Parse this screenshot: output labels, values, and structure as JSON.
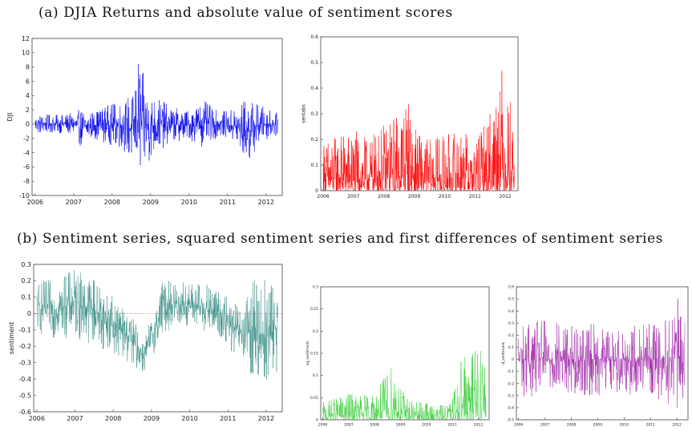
{
  "captions": {
    "a": "(a) DJIA Returns and absolute value of sentiment scores",
    "b": "(b) Sentiment series, squared sentiment series and first differences of sentiment series"
  },
  "chart_data": [
    {
      "type": "line",
      "ylabel": "DJI",
      "xlabel": "",
      "color": "#0000ee",
      "xlim": [
        2005.92,
        2012.42
      ],
      "ylim": [
        -10,
        12
      ],
      "xticks": [
        "2006",
        "2007",
        "2008",
        "2009",
        "2010",
        "2011",
        "2012"
      ],
      "yticks": [
        "-10",
        "-8",
        "-6",
        "-4",
        "-2",
        "0",
        "2",
        "4",
        "6",
        "8",
        "10",
        "12"
      ],
      "zero_line": false,
      "series": [
        {
          "x": [
            2006.0,
            2006.5,
            2007.0,
            2007.2,
            2007.5,
            2007.8,
            2008.0,
            2008.3,
            2008.55,
            2008.72,
            2008.78,
            2008.85,
            2009.0,
            2009.2,
            2009.5,
            2010.0,
            2010.35,
            2010.7,
            2011.0,
            2011.55,
            2011.65,
            2011.8,
            2012.0,
            2012.3
          ],
          "y": [
            1.5,
            1.3,
            1.6,
            2.2,
            1.8,
            2.6,
            2.9,
            3.5,
            4.5,
            10.5,
            7.5,
            6.5,
            4.5,
            3.8,
            2.5,
            2.0,
            3.5,
            2.0,
            1.8,
            4.0,
            3.2,
            2.9,
            2.3,
            1.5
          ]
        },
        {
          "x": [
            2006.0,
            2006.5,
            2007.0,
            2007.2,
            2007.5,
            2007.8,
            2008.0,
            2008.3,
            2008.55,
            2008.72,
            2008.78,
            2008.85,
            2009.0,
            2009.2,
            2009.5,
            2010.0,
            2010.35,
            2010.7,
            2011.0,
            2011.55,
            2011.65,
            2011.8,
            2012.0,
            2012.3
          ],
          "y": [
            -1.5,
            -1.2,
            -1.6,
            -3.3,
            -2.0,
            -2.6,
            -3.0,
            -3.8,
            -6.0,
            -8.2,
            -7.8,
            -7.0,
            -5.0,
            -4.0,
            -2.6,
            -2.2,
            -3.2,
            -2.0,
            -1.8,
            -5.8,
            -4.5,
            -3.0,
            -2.2,
            -1.6
          ]
        }
      ]
    },
    {
      "type": "line",
      "ylabel": "sentabs",
      "xlabel": "",
      "color": "#ff0000",
      "xlim": [
        2005.92,
        2012.42
      ],
      "ylim": [
        0,
        0.6
      ],
      "xticks": [
        "2006",
        "2007",
        "2008",
        "2009",
        "2010",
        "2011",
        "2012"
      ],
      "yticks": [
        "0",
        "0.1",
        "0.2",
        "0.3",
        "0.4",
        "0.5",
        "0.6"
      ],
      "zero_line": false,
      "series": [
        {
          "x": [
            2006.0,
            2006.5,
            2007.0,
            2007.5,
            2008.0,
            2008.4,
            2008.6,
            2008.8,
            2009.0,
            2009.3,
            2009.6,
            2010.0,
            2010.4,
            2010.8,
            2011.0,
            2011.3,
            2011.6,
            2011.85,
            2012.0,
            2012.3
          ],
          "y": [
            0.2,
            0.22,
            0.24,
            0.2,
            0.26,
            0.3,
            0.36,
            0.37,
            0.25,
            0.21,
            0.2,
            0.22,
            0.24,
            0.22,
            0.2,
            0.26,
            0.36,
            0.53,
            0.4,
            0.33
          ]
        },
        {
          "x": [
            2006.0,
            2012.3
          ],
          "y": [
            0.0,
            0.0
          ]
        }
      ]
    },
    {
      "type": "line",
      "ylabel": "sentiment",
      "xlabel": "",
      "color": "#3a8f87",
      "xlim": [
        2005.92,
        2012.42
      ],
      "ylim": [
        -0.6,
        0.3
      ],
      "xticks": [
        "2006",
        "2007",
        "2008",
        "2009",
        "2010",
        "2011",
        "2012"
      ],
      "yticks": [
        "-0.6",
        "-0.5",
        "-0.4",
        "-0.3",
        "-0.2",
        "-0.1",
        "0",
        "0.1",
        "0.2",
        "0.3"
      ],
      "zero_line": true,
      "series": [
        {
          "x": [
            2006.0,
            2006.5,
            2007.0,
            2007.5,
            2008.0,
            2008.4,
            2008.8,
            2009.0,
            2009.3,
            2009.6,
            2010.0,
            2010.4,
            2010.8,
            2011.0,
            2011.4,
            2011.7,
            2011.9,
            2012.0,
            2012.3
          ],
          "y": [
            0.2,
            0.21,
            0.28,
            0.24,
            0.1,
            0.02,
            -0.15,
            -0.02,
            0.2,
            0.21,
            0.2,
            0.18,
            0.15,
            0.1,
            0.03,
            0.25,
            0.27,
            0.2,
            0.25
          ]
        },
        {
          "x": [
            2006.0,
            2006.5,
            2007.0,
            2007.5,
            2008.0,
            2008.4,
            2008.8,
            2009.0,
            2009.3,
            2009.6,
            2010.0,
            2010.4,
            2010.8,
            2011.0,
            2011.4,
            2011.7,
            2011.9,
            2012.0,
            2012.3
          ],
          "y": [
            -0.13,
            -0.15,
            -0.15,
            -0.2,
            -0.24,
            -0.3,
            -0.37,
            -0.28,
            -0.12,
            -0.1,
            -0.09,
            -0.12,
            -0.16,
            -0.22,
            -0.32,
            -0.41,
            -0.52,
            -0.46,
            -0.35
          ]
        }
      ]
    },
    {
      "type": "line",
      "ylabel": "sq_sentiment",
      "xlabel": "",
      "color": "#33cc33",
      "xlim": [
        2005.92,
        2012.42
      ],
      "ylim": [
        0,
        0.3
      ],
      "xticks": [
        "2006",
        "2007",
        "2008",
        "2009",
        "2010",
        "2011",
        "2012"
      ],
      "yticks": [
        "0",
        "0.05",
        "0.1",
        "0.15",
        "0.2",
        "0.25",
        "0.3"
      ],
      "zero_line": false,
      "series": [
        {
          "x": [
            2006.0,
            2006.5,
            2007.0,
            2007.5,
            2008.0,
            2008.4,
            2008.75,
            2009.0,
            2009.3,
            2009.6,
            2010.0,
            2010.4,
            2010.8,
            2011.0,
            2011.4,
            2011.7,
            2011.9,
            2012.0,
            2012.3
          ],
          "y": [
            0.04,
            0.05,
            0.06,
            0.06,
            0.06,
            0.1,
            0.14,
            0.08,
            0.05,
            0.04,
            0.04,
            0.03,
            0.04,
            0.05,
            0.17,
            0.1,
            0.28,
            0.21,
            0.12
          ]
        },
        {
          "x": [
            2006.0,
            2012.3
          ],
          "y": [
            0.0,
            0.0
          ]
        }
      ]
    },
    {
      "type": "line",
      "ylabel": "d_sentiment",
      "xlabel": "",
      "color": "#a028a8",
      "xlim": [
        2005.92,
        2012.42
      ],
      "ylim": [
        -0.5,
        0.6
      ],
      "xticks": [
        "2006",
        "2007",
        "2008",
        "2009",
        "2010",
        "2011",
        "2012"
      ],
      "yticks": [
        "-0.5",
        "-0.4",
        "-0.3",
        "-0.2",
        "-0.1",
        "0",
        "0.1",
        "0.2",
        "0.3",
        "0.4",
        "0.5",
        "0.6"
      ],
      "zero_line": false,
      "series": [
        {
          "x": [
            2006.0,
            2006.5,
            2007.0,
            2007.5,
            2008.0,
            2008.5,
            2009.0,
            2009.5,
            2010.0,
            2010.5,
            2011.0,
            2011.5,
            2011.8,
            2012.0,
            2012.3
          ],
          "y": [
            0.3,
            0.32,
            0.35,
            0.32,
            0.3,
            0.3,
            0.3,
            0.28,
            0.3,
            0.3,
            0.3,
            0.35,
            0.4,
            0.52,
            0.38
          ]
        },
        {
          "x": [
            2006.0,
            2006.5,
            2007.0,
            2007.5,
            2008.0,
            2008.5,
            2009.0,
            2009.5,
            2010.0,
            2010.5,
            2011.0,
            2011.5,
            2011.8,
            2012.0,
            2012.3
          ],
          "y": [
            -0.3,
            -0.32,
            -0.35,
            -0.32,
            -0.3,
            -0.3,
            -0.3,
            -0.28,
            -0.3,
            -0.3,
            -0.3,
            -0.35,
            -0.4,
            -0.45,
            -0.35
          ]
        }
      ]
    }
  ]
}
